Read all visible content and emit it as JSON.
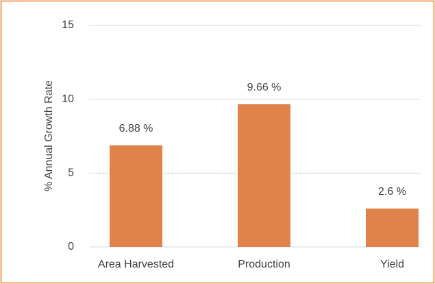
{
  "chart_data": {
    "type": "bar",
    "y_label": "% Annual Growth Rate",
    "categories": [
      "Area Harvested",
      "Production",
      "Yield"
    ],
    "values": [
      6.88,
      9.66,
      2.6
    ],
    "value_labels": [
      "6.88 %",
      "9.66 %",
      "2.6 %"
    ],
    "color": "#e0834a",
    "ylim": [
      0,
      15
    ],
    "yticks": [
      0,
      5,
      10,
      15
    ],
    "grid": true
  }
}
